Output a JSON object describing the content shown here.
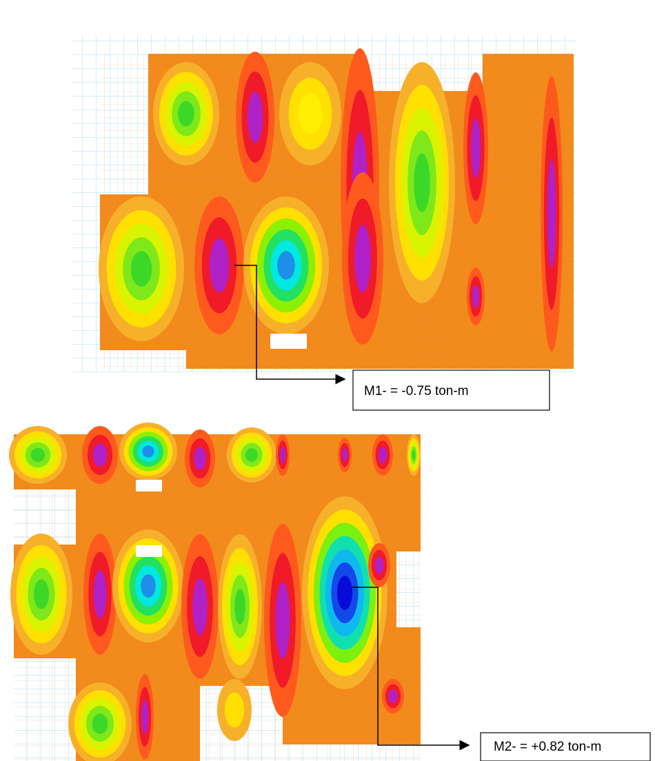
{
  "annotations": [
    {
      "label": "M1- = -0.75 ton-m"
    },
    {
      "label": "M2- = +0.82 ton-m"
    }
  ]
}
